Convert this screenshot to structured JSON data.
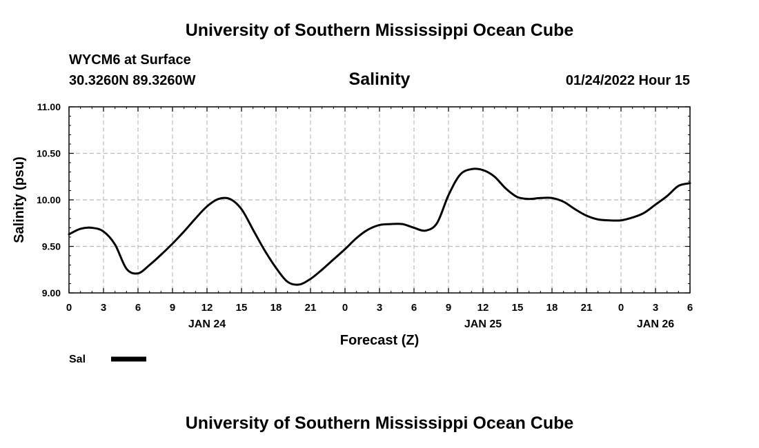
{
  "header": {
    "title": "University of Southern Mississippi Ocean Cube",
    "station": "WYCM6 at Surface",
    "coords": "30.3260N  89.3260W",
    "datetime": "01/24/2022 Hour 15",
    "footer_title": "University of Southern Mississippi Ocean Cube"
  },
  "chart_data": {
    "type": "line",
    "title": "Salinity",
    "xlabel": "Forecast (Z)",
    "ylabel": "Salinity (psu)",
    "xlim": [
      0,
      54
    ],
    "ylim": [
      9.0,
      11.0
    ],
    "grid": true,
    "y_ticks": [
      "9.00",
      "9.50",
      "10.00",
      "10.50",
      "11.00"
    ],
    "x_ticks": [
      "0",
      "3",
      "6",
      "9",
      "12",
      "15",
      "18",
      "21",
      "0",
      "3",
      "6",
      "9",
      "12",
      "15",
      "18",
      "21",
      "0",
      "3",
      "6"
    ],
    "day_labels": [
      {
        "label": "JAN 24",
        "hour": 12
      },
      {
        "label": "JAN 25",
        "hour": 36
      },
      {
        "label": "JAN 26",
        "hour": 51
      }
    ],
    "legend": [
      {
        "name": "Sal",
        "color": "#000000",
        "position": "bottom-left"
      }
    ],
    "series": [
      {
        "name": "Sal",
        "x": [
          0,
          1,
          2,
          3,
          4,
          5,
          6,
          7,
          8,
          9,
          10,
          11,
          12,
          13,
          14,
          15,
          16,
          17,
          18,
          19,
          20,
          21,
          22,
          23,
          24,
          25,
          26,
          27,
          28,
          29,
          30,
          31,
          32,
          33,
          34,
          35,
          36,
          37,
          38,
          39,
          40,
          41,
          42,
          43,
          44,
          45,
          46,
          47,
          48,
          49,
          50,
          51,
          52,
          53,
          54
        ],
        "values": [
          9.63,
          9.69,
          9.7,
          9.66,
          9.52,
          9.26,
          9.21,
          9.3,
          9.41,
          9.53,
          9.66,
          9.8,
          9.93,
          10.01,
          10.01,
          9.9,
          9.68,
          9.46,
          9.27,
          9.12,
          9.09,
          9.15,
          9.25,
          9.36,
          9.47,
          9.59,
          9.68,
          9.73,
          9.74,
          9.74,
          9.7,
          9.67,
          9.75,
          10.05,
          10.27,
          10.33,
          10.32,
          10.25,
          10.12,
          10.03,
          10.01,
          10.02,
          10.02,
          9.98,
          9.9,
          9.83,
          9.79,
          9.78,
          9.78,
          9.81,
          9.86,
          9.95,
          10.04,
          10.15,
          10.18
        ]
      }
    ]
  }
}
